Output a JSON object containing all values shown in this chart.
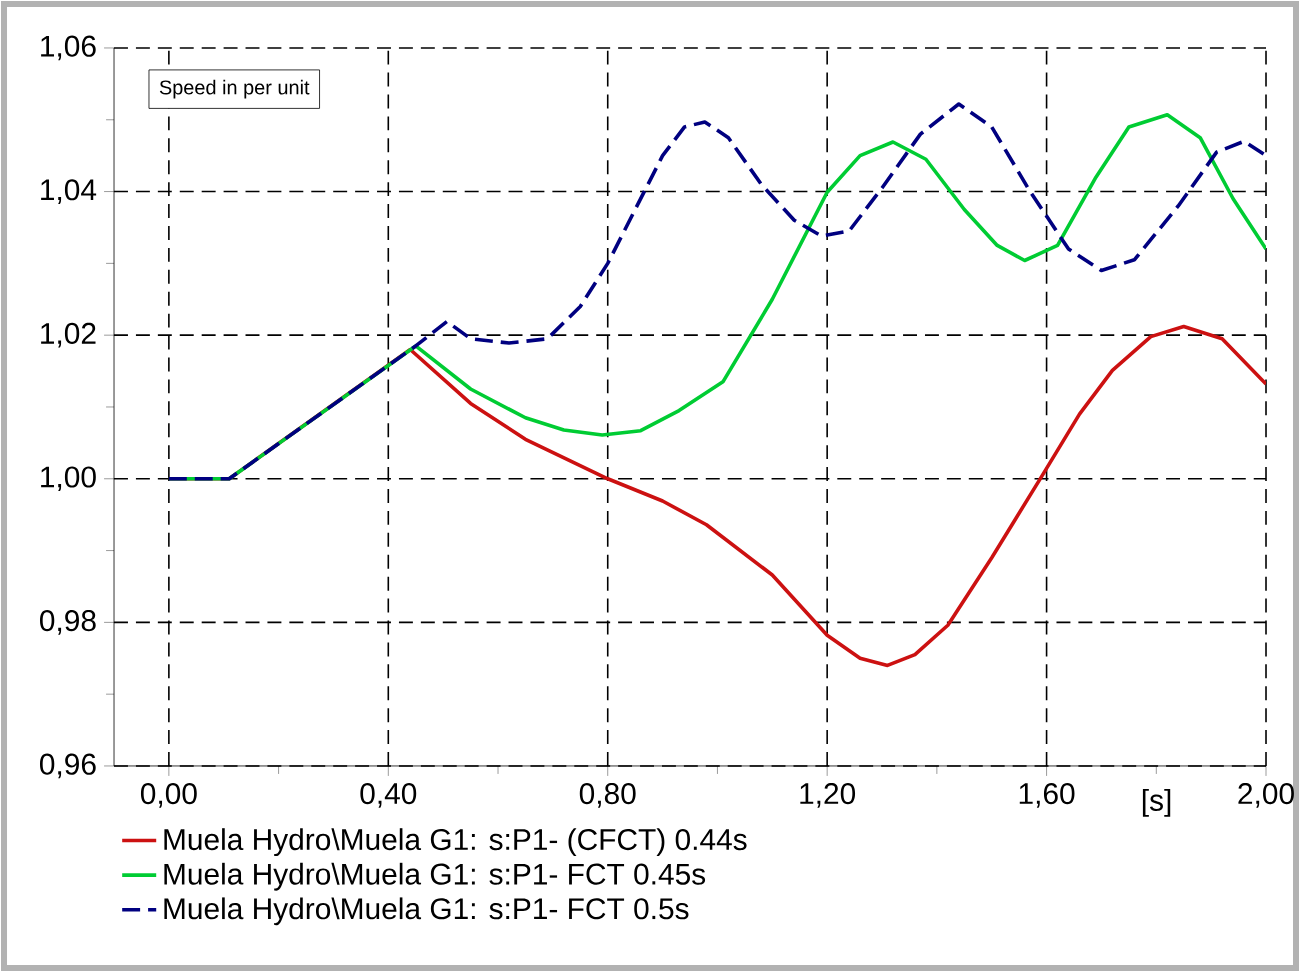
{
  "chart_data": {
    "type": "line",
    "xlabel": "[s]",
    "annotations": [
      "Speed in per unit"
    ],
    "xlim": [
      -0.1,
      2.0
    ],
    "ylim": [
      0.96,
      1.06
    ],
    "xticks": [
      {
        "value": 0,
        "label": "0,00"
      },
      {
        "value": 0.2,
        "label": null
      },
      {
        "value": 0.4,
        "label": "0,40"
      },
      {
        "value": 0.6,
        "label": null
      },
      {
        "value": 0.8,
        "label": "0,80"
      },
      {
        "value": 1.0,
        "label": null
      },
      {
        "value": 1.2,
        "label": "1,20"
      },
      {
        "value": 1.4,
        "label": null
      },
      {
        "value": 1.6,
        "label": "1,60"
      },
      {
        "value": 1.8,
        "label": null
      },
      {
        "value": 2.0,
        "label": "2,00"
      }
    ],
    "yticks": [
      {
        "value": 0.96,
        "label": "0,96"
      },
      {
        "value": 0.97,
        "label": null
      },
      {
        "value": 0.98,
        "label": "0,98"
      },
      {
        "value": 0.99,
        "label": null
      },
      {
        "value": 1.0,
        "label": "1,00"
      },
      {
        "value": 1.01,
        "label": null
      },
      {
        "value": 1.02,
        "label": "1,02"
      },
      {
        "value": 1.03,
        "label": null
      },
      {
        "value": 1.04,
        "label": "1,04"
      },
      {
        "value": 1.05,
        "label": null
      },
      {
        "value": 1.06,
        "label": "1,06"
      }
    ],
    "grid": true,
    "legend": "bottom",
    "series": [
      {
        "name": "Muela Hydro\\Muela G1: s:P1- (CFCT) 0.44s",
        "color": "#cc1111",
        "line_style": "solid",
        "x": [
          0,
          0.11,
          0.44,
          0.55,
          0.65,
          0.8,
          0.9,
          0.98,
          1.1,
          1.2,
          1.26,
          1.31,
          1.36,
          1.42,
          1.5,
          1.59,
          1.66,
          1.72,
          1.79,
          1.85,
          1.92,
          2.0
        ],
        "values": [
          1.0,
          1.0,
          1.018,
          1.0105,
          1.0055,
          1.0,
          0.9969,
          0.9936,
          0.9866,
          0.9782,
          0.975,
          0.974,
          0.9755,
          0.9796,
          0.989,
          1.0002,
          1.009,
          1.0151,
          1.0198,
          1.0212,
          1.0195,
          1.0132
        ]
      },
      {
        "name": "Muela Hydro\\Muela G1: s:P1- FCT 0.45s",
        "color": "#00cc33",
        "line_style": "solid",
        "x": [
          0,
          0.11,
          0.45,
          0.55,
          0.65,
          0.72,
          0.79,
          0.86,
          0.93,
          1.01,
          1.1,
          1.2,
          1.26,
          1.32,
          1.38,
          1.45,
          1.51,
          1.56,
          1.62,
          1.69,
          1.75,
          1.82,
          1.88,
          1.94,
          2.0
        ],
        "values": [
          1.0,
          1.0,
          1.0185,
          1.0125,
          1.0085,
          1.0068,
          1.0061,
          1.0067,
          1.0095,
          1.0135,
          1.025,
          1.0399,
          1.045,
          1.0469,
          1.0445,
          1.0375,
          1.0325,
          1.0304,
          1.0325,
          1.042,
          1.049,
          1.0507,
          1.0475,
          1.039,
          1.032
        ]
      },
      {
        "name": "Muela Hydro\\Muela G1: s:P1- FCT 0.5s",
        "color": "#000080",
        "line_style": "dashed",
        "x": [
          0,
          0.11,
          0.45,
          0.507,
          0.55,
          0.62,
          0.69,
          0.75,
          0.8,
          0.85,
          0.9,
          0.94,
          0.977,
          1.02,
          1.08,
          1.14,
          1.19,
          1.24,
          1.3,
          1.37,
          1.44,
          1.5,
          1.57,
          1.64,
          1.7,
          1.76,
          1.84,
          1.91,
          1.96,
          2.0
        ],
        "values": [
          1.0,
          1.0,
          1.0185,
          1.0219,
          1.0195,
          1.0189,
          1.0195,
          1.024,
          1.03,
          1.0375,
          1.045,
          1.049,
          1.0497,
          1.0475,
          1.041,
          1.036,
          1.0338,
          1.0345,
          1.0405,
          1.048,
          1.0522,
          1.049,
          1.04,
          1.032,
          1.029,
          1.0305,
          1.038,
          1.0455,
          1.047,
          1.045
        ]
      }
    ]
  }
}
